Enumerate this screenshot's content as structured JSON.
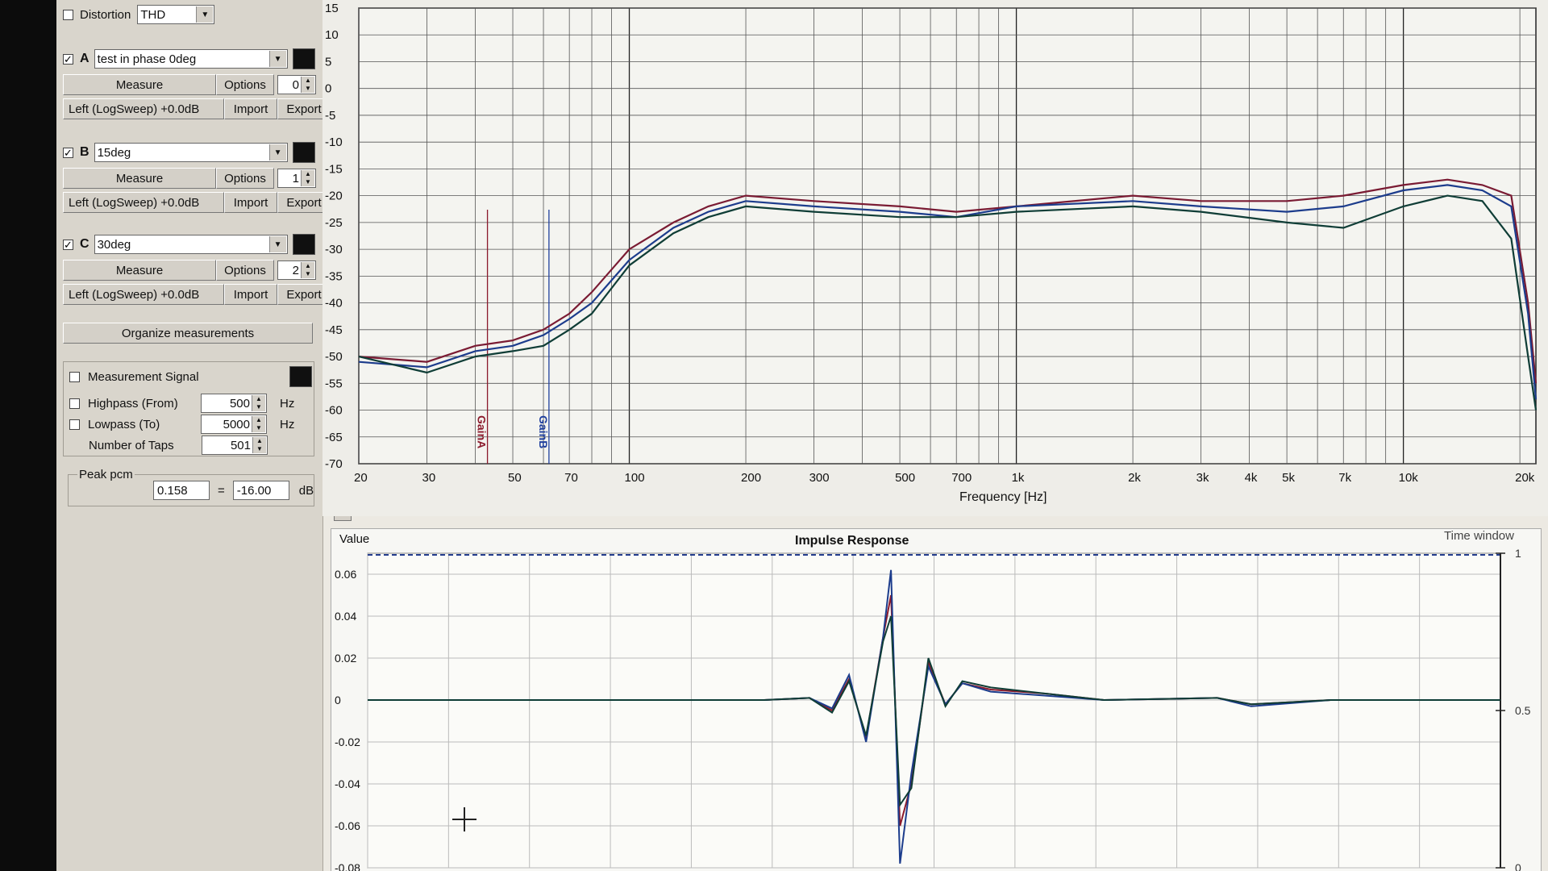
{
  "distortion": {
    "label": "Distortion",
    "value": "THD"
  },
  "measurements": [
    {
      "letter": "A",
      "name": "test in phase 0deg",
      "measure_label": "Measure",
      "options_label": "Options",
      "index": "0",
      "signal": "Left (LogSweep) +0.0dB",
      "import_label": "Import",
      "export_label": "Export",
      "checked": "✓",
      "color": "#101010"
    },
    {
      "letter": "B",
      "name": "15deg",
      "measure_label": "Measure",
      "options_label": "Options",
      "index": "1",
      "signal": "Left (LogSweep) +0.0dB",
      "import_label": "Import",
      "export_label": "Export",
      "checked": "✓",
      "color": "#101010"
    },
    {
      "letter": "C",
      "name": "30deg",
      "measure_label": "Measure",
      "options_label": "Options",
      "index": "2",
      "signal": "Left (LogSweep) +0.0dB",
      "import_label": "Import",
      "export_label": "Export",
      "checked": "✓",
      "color": "#101010"
    }
  ],
  "organize_label": "Organize measurements",
  "signal": {
    "label": "Measurement Signal",
    "highpass_label": "Highpass (From)",
    "highpass_value": "500",
    "highpass_unit": "Hz",
    "lowpass_label": "Lowpass (To)",
    "lowpass_value": "5000",
    "lowpass_unit": "Hz",
    "taps_label": "Number of Taps",
    "taps_value": "501"
  },
  "peak": {
    "label": "Peak pcm",
    "pcm_value": "0.158",
    "equals": "=",
    "db_value": "-16.00",
    "db_unit": "dB"
  },
  "icons": {
    "spin": "up-down-arrow-icon",
    "dropdown": "chevron-down-icon",
    "scroll": "scroll-arrows-icon"
  },
  "chart_data": [
    {
      "type": "line",
      "xlabel": "Frequency [Hz]",
      "x_scale": "log",
      "xlim": [
        20,
        22000
      ],
      "ylim": [
        -70,
        15
      ],
      "y_ticks": [
        "15",
        "10",
        "5",
        "0",
        "-5",
        "-10",
        "-15",
        "-20",
        "-25",
        "-30",
        "-35",
        "-40",
        "-45",
        "-50",
        "-55",
        "-60",
        "-65",
        "-70"
      ],
      "x_tick_labels": [
        {
          "f": 20,
          "t": "20"
        },
        {
          "f": 30,
          "t": "30"
        },
        {
          "f": 50,
          "t": "50"
        },
        {
          "f": 70,
          "t": "70"
        },
        {
          "f": 100,
          "t": "100"
        },
        {
          "f": 200,
          "t": "200"
        },
        {
          "f": 300,
          "t": "300"
        },
        {
          "f": 500,
          "t": "500"
        },
        {
          "f": 700,
          "t": "700"
        },
        {
          "f": 1000,
          "t": "1k"
        },
        {
          "f": 2000,
          "t": "2k"
        },
        {
          "f": 3000,
          "t": "3k"
        },
        {
          "f": 4000,
          "t": "4k"
        },
        {
          "f": 5000,
          "t": "5k"
        },
        {
          "f": 7000,
          "t": "7k"
        },
        {
          "f": 10000,
          "t": "10k"
        },
        {
          "f": 20000,
          "t": "20k"
        }
      ],
      "markers": [
        {
          "label": "GainA",
          "f": 43,
          "color": "#8b1a2c"
        },
        {
          "label": "GainB",
          "f": 62,
          "color": "#1f3f9e"
        }
      ],
      "grid": true,
      "series": [
        {
          "color": "#7a1b33",
          "points": [
            [
              20,
              -50
            ],
            [
              30,
              -51
            ],
            [
              40,
              -48
            ],
            [
              50,
              -47
            ],
            [
              60,
              -45
            ],
            [
              70,
              -42
            ],
            [
              80,
              -38
            ],
            [
              100,
              -30
            ],
            [
              130,
              -25
            ],
            [
              160,
              -22
            ],
            [
              200,
              -20
            ],
            [
              300,
              -21
            ],
            [
              500,
              -22
            ],
            [
              700,
              -23
            ],
            [
              1000,
              -22
            ],
            [
              2000,
              -20
            ],
            [
              3000,
              -21
            ],
            [
              5000,
              -21
            ],
            [
              7000,
              -20
            ],
            [
              10000,
              -18
            ],
            [
              13000,
              -17
            ],
            [
              16000,
              -18
            ],
            [
              19000,
              -20
            ],
            [
              21000,
              -40
            ],
            [
              22000,
              -55
            ]
          ]
        },
        {
          "color": "#1c3c8c",
          "points": [
            [
              20,
              -51
            ],
            [
              30,
              -52
            ],
            [
              40,
              -49
            ],
            [
              50,
              -48
            ],
            [
              60,
              -46
            ],
            [
              70,
              -43
            ],
            [
              80,
              -40
            ],
            [
              100,
              -32
            ],
            [
              130,
              -26
            ],
            [
              160,
              -23
            ],
            [
              200,
              -21
            ],
            [
              300,
              -22
            ],
            [
              500,
              -23
            ],
            [
              700,
              -24
            ],
            [
              1000,
              -22
            ],
            [
              2000,
              -21
            ],
            [
              3000,
              -22
            ],
            [
              5000,
              -23
            ],
            [
              7000,
              -22
            ],
            [
              10000,
              -19
            ],
            [
              13000,
              -18
            ],
            [
              16000,
              -19
            ],
            [
              19000,
              -22
            ],
            [
              21000,
              -42
            ],
            [
              22000,
              -58
            ]
          ]
        },
        {
          "color": "#0f3d36",
          "points": [
            [
              20,
              -50
            ],
            [
              30,
              -53
            ],
            [
              40,
              -50
            ],
            [
              50,
              -49
            ],
            [
              60,
              -48
            ],
            [
              70,
              -45
            ],
            [
              80,
              -42
            ],
            [
              100,
              -33
            ],
            [
              130,
              -27
            ],
            [
              160,
              -24
            ],
            [
              200,
              -22
            ],
            [
              300,
              -23
            ],
            [
              500,
              -24
            ],
            [
              700,
              -24
            ],
            [
              1000,
              -23
            ],
            [
              2000,
              -22
            ],
            [
              3000,
              -23
            ],
            [
              5000,
              -25
            ],
            [
              7000,
              -26
            ],
            [
              10000,
              -22
            ],
            [
              13000,
              -20
            ],
            [
              16000,
              -21
            ],
            [
              19000,
              -28
            ],
            [
              21000,
              -50
            ],
            [
              22000,
              -60
            ]
          ]
        }
      ]
    },
    {
      "type": "line",
      "title": "Impulse Response",
      "ylabel": "Value",
      "right_axis_label": "Time window",
      "ylim": [
        -0.08,
        0.07
      ],
      "y_ticks": [
        "0.06",
        "0.04",
        "0.02",
        "0",
        "-0.02",
        "-0.04",
        "-0.06",
        "-0.08"
      ],
      "right_ticks": [
        "1",
        "0.5",
        "0"
      ],
      "grid": true,
      "series": [
        {
          "color": "#8b1a2c",
          "points": [
            [
              0,
              0
            ],
            [
              0.35,
              0
            ],
            [
              0.39,
              0.001
            ],
            [
              0.41,
              -0.005
            ],
            [
              0.425,
              0.01
            ],
            [
              0.44,
              -0.018
            ],
            [
              0.455,
              0.03
            ],
            [
              0.462,
              0.05
            ],
            [
              0.47,
              -0.06
            ],
            [
              0.48,
              -0.04
            ],
            [
              0.495,
              0.018
            ],
            [
              0.51,
              -0.002
            ],
            [
              0.525,
              0.008
            ],
            [
              0.55,
              0.005
            ],
            [
              0.6,
              0.003
            ],
            [
              0.65,
              0
            ],
            [
              0.75,
              0.001
            ],
            [
              0.78,
              -0.002
            ],
            [
              0.85,
              0
            ],
            [
              1,
              0
            ]
          ]
        },
        {
          "color": "#1c3c8c",
          "points": [
            [
              0,
              0
            ],
            [
              0.35,
              0
            ],
            [
              0.39,
              0.001
            ],
            [
              0.41,
              -0.004
            ],
            [
              0.425,
              0.012
            ],
            [
              0.44,
              -0.02
            ],
            [
              0.455,
              0.03
            ],
            [
              0.462,
              0.062
            ],
            [
              0.47,
              -0.078
            ],
            [
              0.48,
              -0.035
            ],
            [
              0.495,
              0.016
            ],
            [
              0.51,
              -0.002
            ],
            [
              0.525,
              0.008
            ],
            [
              0.55,
              0.004
            ],
            [
              0.6,
              0.002
            ],
            [
              0.65,
              0
            ],
            [
              0.75,
              0.001
            ],
            [
              0.78,
              -0.003
            ],
            [
              0.85,
              0
            ],
            [
              1,
              0
            ]
          ]
        },
        {
          "color": "#0f3d36",
          "points": [
            [
              0,
              0
            ],
            [
              0.35,
              0
            ],
            [
              0.39,
              0.001
            ],
            [
              0.41,
              -0.006
            ],
            [
              0.425,
              0.009
            ],
            [
              0.44,
              -0.017
            ],
            [
              0.455,
              0.028
            ],
            [
              0.462,
              0.04
            ],
            [
              0.47,
              -0.05
            ],
            [
              0.48,
              -0.042
            ],
            [
              0.495,
              0.02
            ],
            [
              0.51,
              -0.003
            ],
            [
              0.525,
              0.009
            ],
            [
              0.55,
              0.006
            ],
            [
              0.6,
              0.003
            ],
            [
              0.65,
              0
            ],
            [
              0.75,
              0.001
            ],
            [
              0.78,
              -0.002
            ],
            [
              0.85,
              0
            ],
            [
              1,
              0
            ]
          ]
        }
      ]
    }
  ]
}
